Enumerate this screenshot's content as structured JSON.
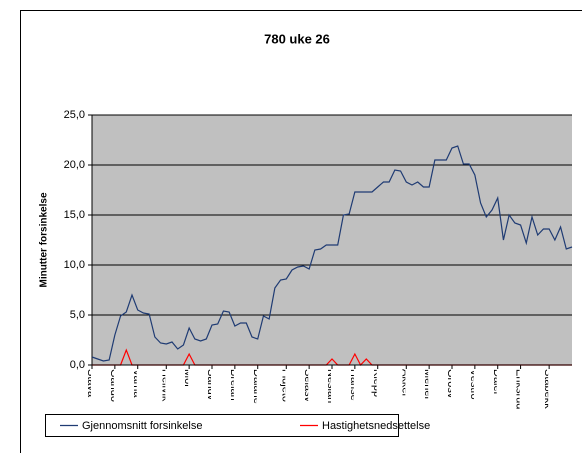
{
  "chart_data": {
    "type": "line",
    "title": "780 uke 26",
    "y_label": "Minutter forsinkelse",
    "categories": [
      "Stava",
      null,
      null,
      null,
      "Gando",
      null,
      null,
      null,
      "Varha",
      null,
      null,
      null,
      null,
      "Hellvik",
      null,
      null,
      null,
      "Moi",
      null,
      null,
      null,
      "Sandv",
      null,
      null,
      null,
      "Brelan",
      null,
      null,
      null,
      "Dalane",
      null,
      null,
      null,
      null,
      "Fidjeto",
      null,
      null,
      null,
      "Selåsv",
      null,
      null,
      null,
      "Neslan",
      null,
      null,
      null,
      "Hanse",
      null,
      null,
      null,
      "Klepp",
      null,
      null,
      null,
      null,
      "Akker",
      null,
      null,
      null,
      "Mehei",
      null,
      null,
      null,
      "Grosv",
      null,
      null,
      null,
      "Vestfo",
      null,
      null,
      null,
      "Daler",
      null,
      null,
      null,
      "Eriksrud",
      null,
      null,
      null,
      null,
      "Stabekk",
      null,
      null,
      null,
      null
    ],
    "series": [
      {
        "name": "Gjennomsnitt forsinkelse",
        "color": "#1f3b73",
        "values": [
          0.8,
          0.6,
          0.4,
          0.5,
          3.0,
          4.9,
          5.3,
          7.0,
          5.5,
          5.2,
          5.1,
          2.8,
          2.2,
          2.1,
          2.3,
          1.6,
          2.0,
          3.7,
          2.6,
          2.4,
          2.6,
          4.0,
          4.1,
          5.4,
          5.3,
          3.9,
          4.2,
          4.2,
          2.8,
          2.6,
          4.9,
          4.6,
          7.7,
          8.5,
          8.6,
          9.5,
          9.8,
          9.9,
          9.6,
          11.5,
          11.6,
          12.0,
          12.0,
          12.0,
          15.0,
          15.1,
          17.3,
          17.3,
          17.3,
          17.3,
          17.8,
          18.3,
          18.3,
          19.5,
          19.4,
          18.3,
          18.0,
          18.3,
          17.8,
          17.8,
          20.5,
          20.5,
          20.5,
          21.7,
          21.9,
          20.1,
          20.1,
          19.0,
          16.2,
          14.8,
          15.5,
          16.7,
          12.5,
          15.0,
          14.2,
          14.0,
          12.2,
          14.8,
          13.0,
          13.6,
          13.6,
          12.5,
          13.8,
          11.6,
          11.8
        ]
      },
      {
        "name": "Hastighetsnedsettelse",
        "color": "#ff0000",
        "values": [
          0,
          0,
          0,
          0,
          0,
          0,
          1.5,
          0,
          0,
          0,
          0,
          0,
          0,
          0,
          0,
          0,
          0,
          1.1,
          0,
          0,
          0,
          0,
          0,
          0,
          0,
          0,
          0,
          0,
          0,
          0,
          0,
          0,
          0,
          0,
          0,
          0,
          0,
          0,
          0,
          0,
          0,
          0,
          0.6,
          0,
          0,
          0,
          1.1,
          0,
          0.6,
          0,
          0,
          0,
          0,
          0,
          0,
          0,
          0,
          0,
          0,
          0,
          0,
          0,
          0,
          0,
          0,
          0,
          0,
          0,
          0,
          0,
          0,
          0,
          0,
          0,
          0,
          0,
          0,
          0,
          0,
          0,
          0,
          0,
          0,
          0,
          0
        ]
      }
    ],
    "ylim": [
      0,
      25
    ],
    "yticks": [
      {
        "value": 0,
        "label": "0,0"
      },
      {
        "value": 5,
        "label": "5,0"
      },
      {
        "value": 10,
        "label": "10,0"
      },
      {
        "value": 15,
        "label": "15,0"
      },
      {
        "value": 20,
        "label": "20,0"
      },
      {
        "value": 25,
        "label": "25,0"
      }
    ],
    "grid": true,
    "plot_color": "#c0c0c0",
    "legend": "bottom"
  }
}
